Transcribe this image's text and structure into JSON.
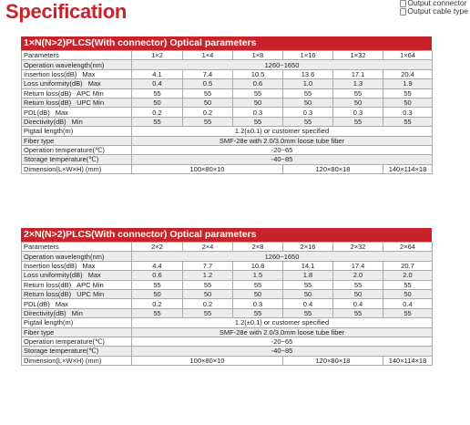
{
  "page_title": "Specification",
  "legend": [
    {
      "label": "Output connector",
      "color": "#f2f2f2"
    },
    {
      "label": "Output cable type",
      "color": "#f2f2f2"
    }
  ],
  "sections": [
    {
      "title_prefix": "1×N(N>2)PLCS",
      "title_rest": "(With connector) Optical parameters",
      "header": {
        "label": "Parameters",
        "cols": [
          "1×2",
          "1×4",
          "1×8",
          "1×16",
          "1×32",
          "1×64"
        ]
      },
      "wavelength": {
        "label": "Operation wavelength(nm)",
        "value": "1260~1650"
      },
      "value_rows": [
        {
          "label": "Insertion loss(dB)",
          "qualifier": "Max",
          "values": [
            "4.1",
            "7.4",
            "10.5",
            "13.6",
            "17.1",
            "20.4"
          ]
        },
        {
          "label": "Loss uniformity(dB)",
          "qualifier": "Max",
          "values": [
            "0.4",
            "0.5",
            "0.6",
            "1.0",
            "1.3",
            "1.9"
          ]
        },
        {
          "label": "Return loss(dB)",
          "qualifier": "APC Min",
          "values": [
            "55",
            "55",
            "55",
            "55",
            "55",
            "55"
          ]
        },
        {
          "label": "Return loss(dB)",
          "qualifier": "UPC Min",
          "values": [
            "50",
            "50",
            "50",
            "50",
            "50",
            "50"
          ]
        },
        {
          "label": "PDL(dB)",
          "qualifier": "Max",
          "values": [
            "0.2",
            "0.2",
            "0.3",
            "0.3",
            "0.3",
            "0.3"
          ]
        },
        {
          "label": "Directivity(dB)",
          "qualifier": "Min",
          "values": [
            "55",
            "55",
            "55",
            "55",
            "55",
            "55"
          ]
        }
      ],
      "span_rows": [
        {
          "label": "Pigtail length(m)",
          "value": "1.2(±0.1) or customer specified"
        },
        {
          "label": "Fiber type",
          "value": "SMF-28e with 2.0/3.0mm loose tube fiber"
        },
        {
          "label": "Operation temperature(℃)",
          "value": "-20~65"
        },
        {
          "label": "Storage temperature(℃)",
          "value": "-40~85"
        }
      ],
      "dimension": {
        "label": "Dimension(L×W×H) (mm)",
        "values": [
          "100×80×10",
          "120×80×18",
          "140×114×18"
        ]
      }
    },
    {
      "title_prefix": "2×N(N>2)PLCS",
      "title_rest": "(With connector) Optical parameters",
      "header": {
        "label": "Parameters",
        "cols": [
          "2×2",
          "2×4",
          "2×8",
          "2×16",
          "2×32",
          "2×64"
        ]
      },
      "wavelength": {
        "label": "Operation wavelength(nm)",
        "value": "1260~1650"
      },
      "value_rows": [
        {
          "label": "Insertion loss(dB)",
          "qualifier": "Max",
          "values": [
            "4.4",
            "7.7",
            "10.8",
            "14.1",
            "17.4",
            "20.7"
          ]
        },
        {
          "label": "Loss uniformity(dB)",
          "qualifier": "Max",
          "values": [
            "0.6",
            "1.2",
            "1.5",
            "1.8",
            "2.0",
            "2.0"
          ]
        },
        {
          "label": "Return loss(dB)",
          "qualifier": "APC Min",
          "values": [
            "55",
            "55",
            "55",
            "55",
            "55",
            "55"
          ]
        },
        {
          "label": "Return loss(dB)",
          "qualifier": "UPC Min",
          "values": [
            "50",
            "50",
            "50",
            "50",
            "50",
            "50"
          ]
        },
        {
          "label": "PDL(dB)",
          "qualifier": "Max",
          "values": [
            "0.2",
            "0.2",
            "0.3",
            "0.4",
            "0.4",
            "0.4"
          ]
        },
        {
          "label": "Directivity(dB)",
          "qualifier": "Min",
          "values": [
            "55",
            "55",
            "55",
            "55",
            "55",
            "55"
          ]
        }
      ],
      "span_rows": [
        {
          "label": "Pigtail length(m)",
          "value": "1.2(±0.1) or customer specified"
        },
        {
          "label": "Fiber type",
          "value": "SMF-28e with 2.0/3.0mm loose tube fiber"
        },
        {
          "label": "Operation temperature(℃)",
          "value": "-20~65"
        },
        {
          "label": "Storage temperature(℃)",
          "value": "-40~85"
        }
      ],
      "dimension": {
        "label": "Dimension(L×W×H) (mm)",
        "values": [
          "100×80×10",
          "120×80×18",
          "140×114×18"
        ]
      }
    }
  ]
}
